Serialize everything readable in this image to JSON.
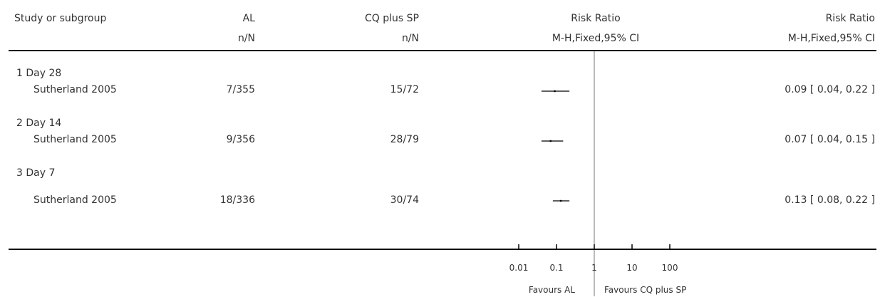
{
  "header": {
    "study": "Study or subgroup",
    "al": "AL",
    "al_sub": "n/N",
    "cq": "CQ plus SP",
    "cq_sub": "n/N",
    "rr_plot": "Risk Ratio",
    "rr_plot_sub": "M-H,Fixed,95% CI",
    "rr_text": "Risk Ratio",
    "rr_text_sub": "M-H,Fixed,95% CI"
  },
  "groups": [
    {
      "label": "1 Day 28",
      "study": "Sutherland 2005",
      "al": "7/355",
      "cq": "15/72",
      "rr_text": "0.09 [ 0.04, 0.22 ]"
    },
    {
      "label": "2 Day 14",
      "study": "Sutherland 2005",
      "al": "9/356",
      "cq": "28/79",
      "rr_text": "0.07 [ 0.04, 0.15 ]"
    },
    {
      "label": "3 Day 7",
      "study": "Sutherland 2005",
      "al": "18/336",
      "cq": "30/74",
      "rr_text": "0.13 [ 0.08, 0.22 ]"
    }
  ],
  "axis": {
    "ticks": [
      "0.01",
      "0.1",
      "1",
      "10",
      "100"
    ],
    "favours_left": "Favours AL",
    "favours_right": "Favours CQ plus SP"
  },
  "chart_data": {
    "type": "forest",
    "scale": "log",
    "xlim": [
      0.01,
      100
    ],
    "reference_line": 1,
    "rows": [
      {
        "subgroup": "1 Day 28",
        "rr": 0.09,
        "ci": [
          0.04,
          0.22
        ]
      },
      {
        "subgroup": "2 Day 14",
        "rr": 0.07,
        "ci": [
          0.04,
          0.15
        ]
      },
      {
        "subgroup": "3 Day 7",
        "rr": 0.13,
        "ci": [
          0.08,
          0.22
        ]
      }
    ]
  }
}
